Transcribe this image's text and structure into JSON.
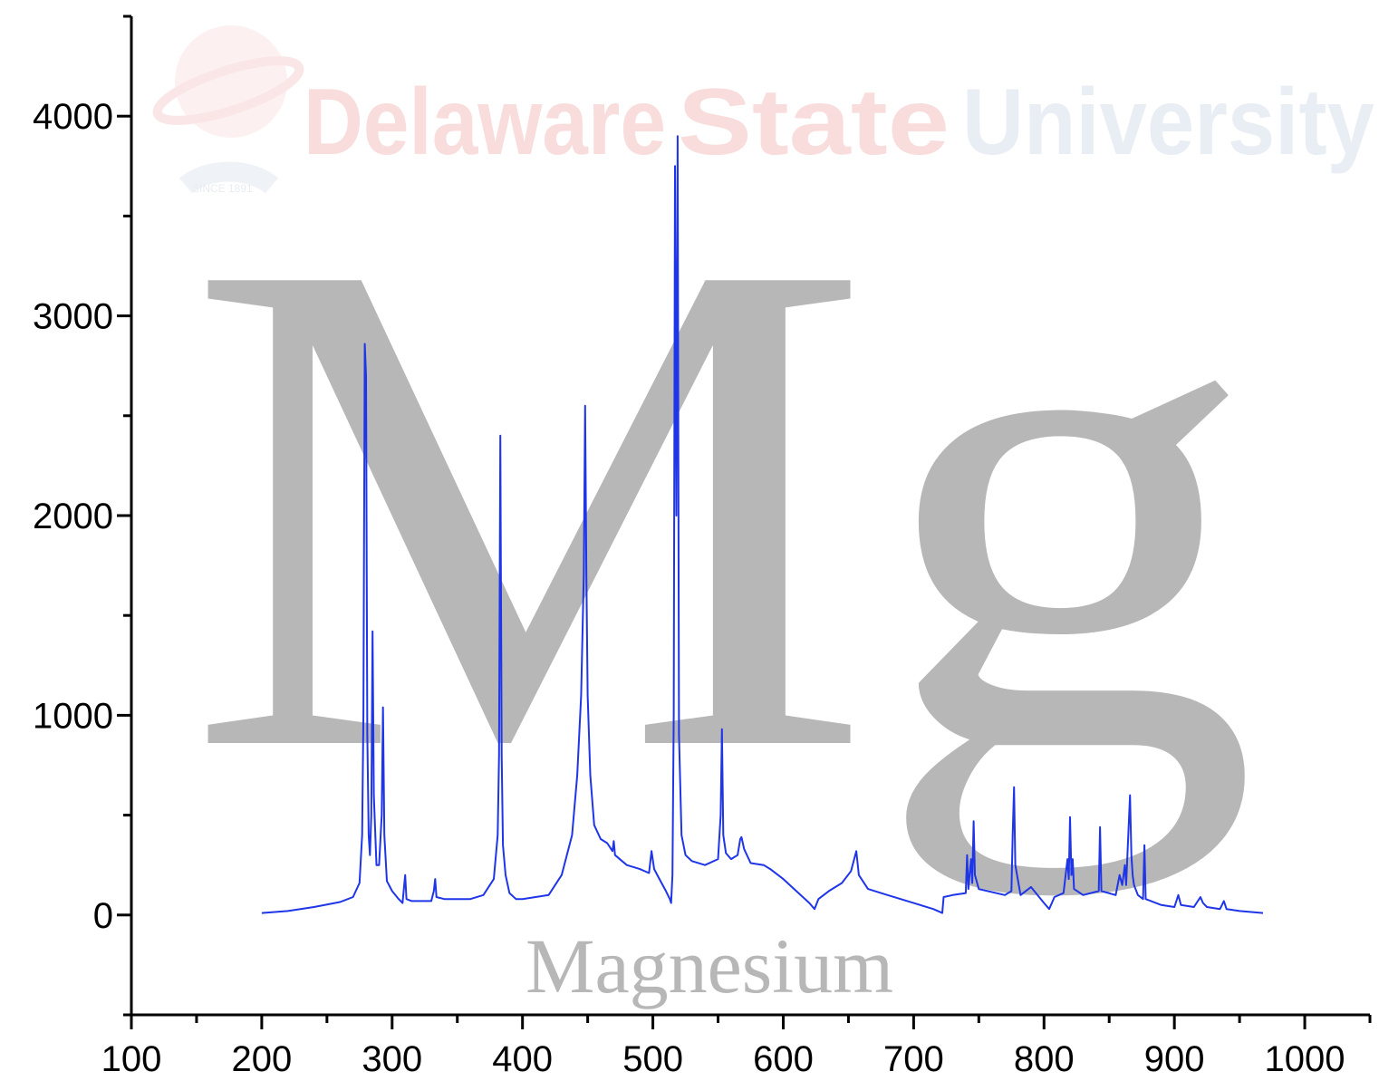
{
  "watermark": {
    "word1": "Delaware",
    "word2": "State",
    "word3": "University",
    "since": "SINCE 1891",
    "color_red": "#f9dcdc",
    "color_blue": "#e9edf4"
  },
  "overlay": {
    "symbol": "Mg",
    "name": "Magnesium",
    "color": "#b7b7b7"
  },
  "chart_data": {
    "type": "line",
    "title": "",
    "xlabel": "",
    "ylabel": "",
    "xlim": [
      100,
      1050
    ],
    "ylim": [
      -500,
      4500
    ],
    "x_ticks": [
      100,
      200,
      300,
      400,
      500,
      600,
      700,
      800,
      900,
      1000
    ],
    "x_tick_labels": [
      "100",
      "200",
      "300",
      "400",
      "500",
      "600",
      "700",
      "800",
      "900",
      "1000"
    ],
    "y_ticks": [
      0,
      1000,
      2000,
      3000,
      4000
    ],
    "y_tick_labels": [
      "0",
      "1000",
      "2000",
      "3000",
      "4000"
    ],
    "grid": false,
    "series": [
      {
        "color": "#1f35e8",
        "points": [
          [
            200,
            10
          ],
          [
            220,
            20
          ],
          [
            240,
            40
          ],
          [
            260,
            65
          ],
          [
            270,
            90
          ],
          [
            275,
            160
          ],
          [
            277,
            400
          ],
          [
            278,
            1000
          ],
          [
            279,
            2860
          ],
          [
            280,
            2700
          ],
          [
            281,
            900
          ],
          [
            282,
            400
          ],
          [
            283,
            300
          ],
          [
            284,
            500
          ],
          [
            285,
            1420
          ],
          [
            286,
            600
          ],
          [
            288,
            250
          ],
          [
            290,
            250
          ],
          [
            292,
            500
          ],
          [
            293,
            1040
          ],
          [
            294,
            400
          ],
          [
            296,
            170
          ],
          [
            300,
            120
          ],
          [
            305,
            80
          ],
          [
            308,
            60
          ],
          [
            309,
            130
          ],
          [
            310,
            200
          ],
          [
            311,
            80
          ],
          [
            315,
            70
          ],
          [
            320,
            70
          ],
          [
            330,
            70
          ],
          [
            332,
            120
          ],
          [
            333,
            180
          ],
          [
            334,
            90
          ],
          [
            340,
            80
          ],
          [
            350,
            80
          ],
          [
            360,
            80
          ],
          [
            370,
            100
          ],
          [
            378,
            180
          ],
          [
            381,
            400
          ],
          [
            382,
            800
          ],
          [
            383,
            2400
          ],
          [
            384,
            800
          ],
          [
            385,
            350
          ],
          [
            387,
            200
          ],
          [
            390,
            110
          ],
          [
            395,
            80
          ],
          [
            400,
            80
          ],
          [
            420,
            100
          ],
          [
            430,
            200
          ],
          [
            438,
            400
          ],
          [
            442,
            700
          ],
          [
            445,
            1100
          ],
          [
            447,
            1700
          ],
          [
            448,
            2550
          ],
          [
            449,
            1700
          ],
          [
            450,
            1100
          ],
          [
            452,
            700
          ],
          [
            455,
            450
          ],
          [
            460,
            380
          ],
          [
            465,
            360
          ],
          [
            469,
            320
          ],
          [
            470,
            370
          ],
          [
            471,
            300
          ],
          [
            480,
            250
          ],
          [
            490,
            230
          ],
          [
            497,
            210
          ],
          [
            499,
            320
          ],
          [
            501,
            230
          ],
          [
            505,
            180
          ],
          [
            510,
            120
          ],
          [
            513,
            80
          ],
          [
            514,
            60
          ],
          [
            515,
            200
          ],
          [
            516,
            1000
          ],
          [
            517,
            3750
          ],
          [
            518,
            2000
          ],
          [
            519,
            3900
          ],
          [
            520,
            900
          ],
          [
            522,
            400
          ],
          [
            525,
            300
          ],
          [
            530,
            270
          ],
          [
            540,
            250
          ],
          [
            550,
            280
          ],
          [
            552,
            500
          ],
          [
            553,
            930
          ],
          [
            554,
            400
          ],
          [
            556,
            310
          ],
          [
            560,
            280
          ],
          [
            565,
            300
          ],
          [
            567,
            380
          ],
          [
            568,
            390
          ],
          [
            570,
            330
          ],
          [
            575,
            260
          ],
          [
            585,
            250
          ],
          [
            590,
            230
          ],
          [
            600,
            180
          ],
          [
            610,
            120
          ],
          [
            620,
            60
          ],
          [
            624,
            30
          ],
          [
            627,
            80
          ],
          [
            635,
            120
          ],
          [
            645,
            160
          ],
          [
            652,
            220
          ],
          [
            656,
            320
          ],
          [
            658,
            200
          ],
          [
            665,
            130
          ],
          [
            680,
            100
          ],
          [
            700,
            60
          ],
          [
            715,
            30
          ],
          [
            722,
            10
          ],
          [
            723,
            90
          ],
          [
            730,
            100
          ],
          [
            740,
            110
          ],
          [
            741,
            300
          ],
          [
            742,
            130
          ],
          [
            744,
            280
          ],
          [
            745,
            160
          ],
          [
            746,
            470
          ],
          [
            747,
            200
          ],
          [
            750,
            130
          ],
          [
            770,
            100
          ],
          [
            775,
            120
          ],
          [
            776,
            400
          ],
          [
            777,
            640
          ],
          [
            778,
            250
          ],
          [
            782,
            100
          ],
          [
            790,
            140
          ],
          [
            795,
            100
          ],
          [
            800,
            60
          ],
          [
            804,
            30
          ],
          [
            808,
            90
          ],
          [
            815,
            110
          ],
          [
            818,
            280
          ],
          [
            819,
            180
          ],
          [
            820,
            490
          ],
          [
            821,
            200
          ],
          [
            822,
            280
          ],
          [
            823,
            130
          ],
          [
            830,
            100
          ],
          [
            842,
            120
          ],
          [
            843,
            440
          ],
          [
            844,
            120
          ],
          [
            855,
            100
          ],
          [
            858,
            200
          ],
          [
            860,
            150
          ],
          [
            862,
            250
          ],
          [
            863,
            150
          ],
          [
            866,
            600
          ],
          [
            867,
            300
          ],
          [
            868,
            200
          ],
          [
            869,
            150
          ],
          [
            872,
            100
          ],
          [
            876,
            80
          ],
          [
            877,
            350
          ],
          [
            878,
            80
          ],
          [
            890,
            50
          ],
          [
            900,
            40
          ],
          [
            903,
            100
          ],
          [
            905,
            50
          ],
          [
            915,
            40
          ],
          [
            920,
            90
          ],
          [
            922,
            60
          ],
          [
            925,
            40
          ],
          [
            935,
            30
          ],
          [
            938,
            70
          ],
          [
            940,
            30
          ],
          [
            950,
            20
          ],
          [
            968,
            10
          ]
        ]
      }
    ]
  }
}
